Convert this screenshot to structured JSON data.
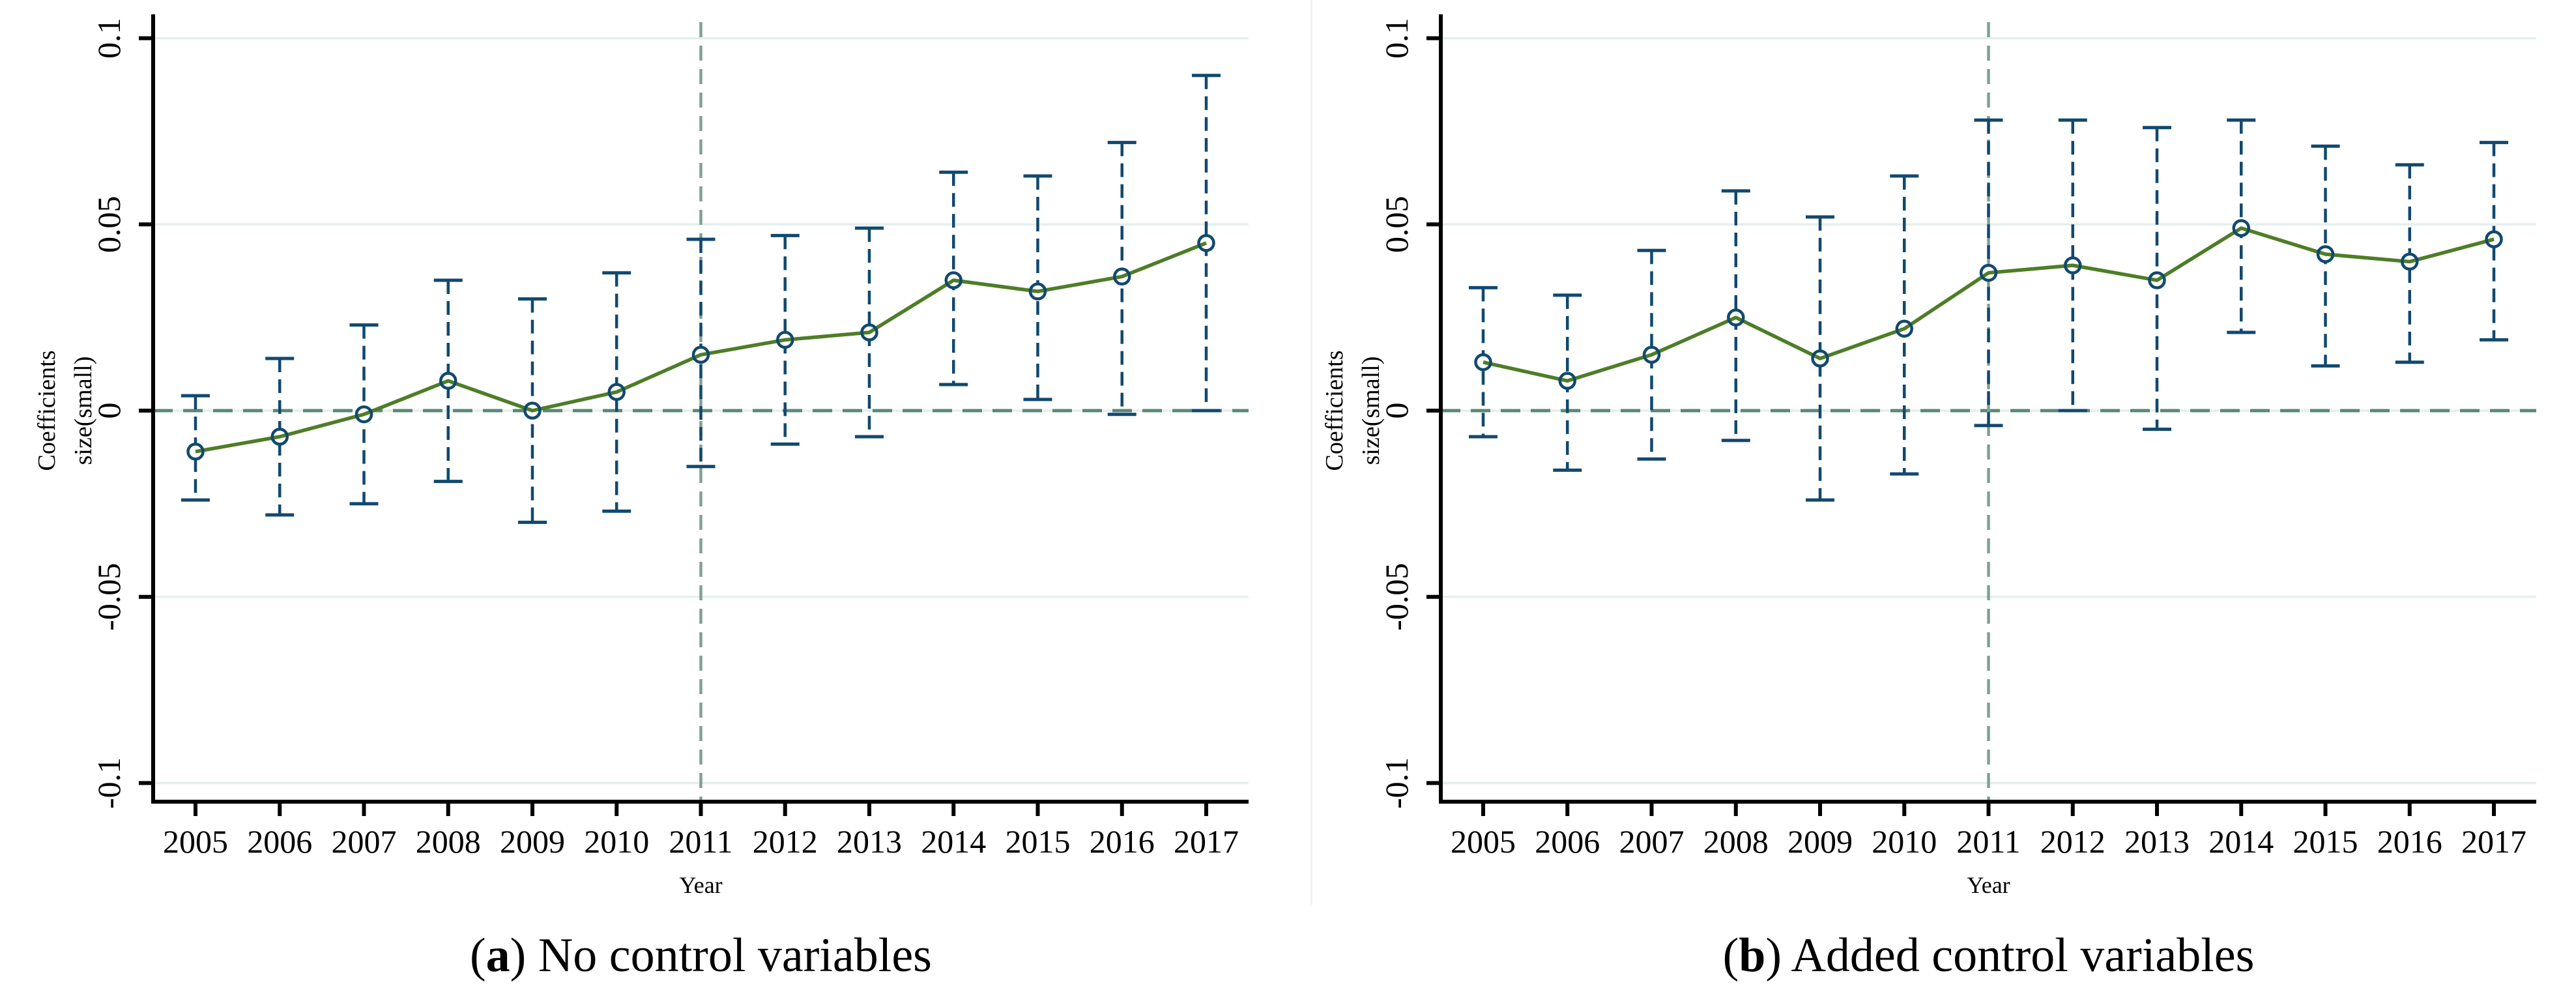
{
  "figure": {
    "xlabel": "Year",
    "ylabel_lines": [
      "Coefficients",
      "size(small)"
    ],
    "divider_color": "#edf2f2"
  },
  "style": {
    "navy": "#11496f",
    "green": "#4e7d27",
    "grid_color": "#e3efed",
    "zero_line_color": "#5a8778",
    "vline_color": "#7fa095",
    "axis_color": "#000000",
    "text_color": "#000000",
    "background": "#ffffff"
  },
  "captions": [
    {
      "open": "(",
      "label": "a",
      "close": ") ",
      "text": "No control variables"
    },
    {
      "open": "(",
      "label": "b",
      "close": ") ",
      "text": "Added control variables"
    }
  ],
  "chart_data": [
    {
      "type": "line",
      "title": "(a) No control variables",
      "xlabel": "Year",
      "ylabel": "Coefficients size(small)",
      "ylabel_lines": [
        "Coefficients",
        "size(small)"
      ],
      "x": [
        2005,
        2006,
        2007,
        2008,
        2009,
        2010,
        2011,
        2012,
        2013,
        2014,
        2015,
        2016,
        2017
      ],
      "series": [
        {
          "name": "coefficient",
          "values": [
            -0.011,
            -0.007,
            -0.001,
            0.008,
            0.0,
            0.005,
            0.015,
            0.019,
            0.021,
            0.035,
            0.032,
            0.036,
            0.045
          ]
        }
      ],
      "ci_low": [
        -0.024,
        -0.028,
        -0.025,
        -0.019,
        -0.03,
        -0.027,
        -0.015,
        -0.009,
        -0.007,
        0.007,
        0.003,
        -0.001,
        0.0
      ],
      "ci_high": [
        0.004,
        0.014,
        0.023,
        0.035,
        0.03,
        0.037,
        0.046,
        0.047,
        0.049,
        0.064,
        0.063,
        0.072,
        0.09
      ],
      "yticks": [
        0.1,
        0.05,
        0,
        -0.05,
        -0.1
      ],
      "ytick_labels": [
        "0.1",
        "0.05",
        "0",
        "-0.05",
        "-0.1"
      ],
      "ylim": [
        -0.105,
        0.105
      ],
      "reference": {
        "hline_y": 0,
        "vline_x": 2011
      },
      "grid": true,
      "legend": "none",
      "marker": "circle-hollow",
      "ci_style": "dashed-capped"
    },
    {
      "type": "line",
      "title": "(b) Added control variables",
      "xlabel": "Year",
      "ylabel": "Coefficients size(small)",
      "ylabel_lines": [
        "Coefficients",
        "size(small)"
      ],
      "x": [
        2005,
        2006,
        2007,
        2008,
        2009,
        2010,
        2011,
        2012,
        2013,
        2014,
        2015,
        2016,
        2017
      ],
      "series": [
        {
          "name": "coefficient",
          "values": [
            0.013,
            0.008,
            0.015,
            0.025,
            0.014,
            0.022,
            0.037,
            0.039,
            0.035,
            0.049,
            0.042,
            0.04,
            0.046
          ]
        }
      ],
      "ci_low": [
        -0.007,
        -0.016,
        -0.013,
        -0.008,
        -0.024,
        -0.017,
        -0.004,
        0.0,
        -0.005,
        0.021,
        0.012,
        0.013,
        0.019
      ],
      "ci_high": [
        0.033,
        0.031,
        0.043,
        0.059,
        0.052,
        0.063,
        0.078,
        0.078,
        0.076,
        0.078,
        0.071,
        0.066,
        0.072
      ],
      "yticks": [
        0.1,
        0.05,
        0,
        -0.05,
        -0.1
      ],
      "ytick_labels": [
        "0.1",
        "0.05",
        "0",
        "-0.05",
        "-0.1"
      ],
      "ylim": [
        -0.105,
        0.105
      ],
      "reference": {
        "hline_y": 0,
        "vline_x": 2011
      },
      "grid": true,
      "legend": "none",
      "marker": "circle-hollow",
      "ci_style": "dashed-capped"
    }
  ]
}
